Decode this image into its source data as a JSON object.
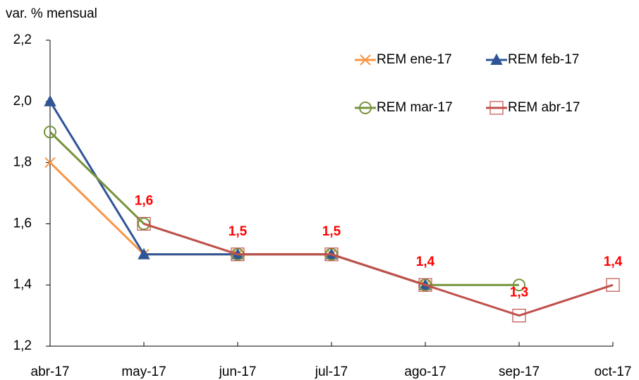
{
  "chart_data": {
    "type": "line",
    "y_label": "var. % mensual",
    "categories": [
      "abr-17",
      "may-17",
      "jun-17",
      "jul-17",
      "ago-17",
      "sep-17",
      "oct-17"
    ],
    "series": [
      {
        "name": "REM ene-17",
        "color": "#f79646",
        "marker": "x",
        "values": [
          1.8,
          1.5,
          1.5,
          1.5,
          1.4,
          null,
          null
        ]
      },
      {
        "name": "REM feb-17",
        "color": "#2f5597",
        "marker": "triangle",
        "values": [
          2.0,
          1.5,
          1.5,
          1.5,
          1.4,
          null,
          null
        ]
      },
      {
        "name": "REM mar-17",
        "color": "#77933c",
        "marker": "circle",
        "values": [
          1.9,
          1.6,
          1.5,
          1.5,
          1.4,
          1.4,
          null
        ]
      },
      {
        "name": "REM abr-17",
        "color": "#c0504d",
        "marker": "square",
        "values": [
          null,
          1.6,
          1.5,
          1.5,
          1.4,
          1.3,
          1.4
        ],
        "value_labels": [
          null,
          "1,6",
          "1,5",
          "1,5",
          "1,4",
          "1,3",
          "1,4"
        ]
      }
    ],
    "ylim": [
      1.2,
      2.2
    ],
    "yticks": [
      {
        "value": 1.2,
        "label": "1,2"
      },
      {
        "value": 1.4,
        "label": "1,4"
      },
      {
        "value": 1.6,
        "label": "1,6"
      },
      {
        "value": 1.8,
        "label": "1,8"
      },
      {
        "value": 2.0,
        "label": "2,0"
      },
      {
        "value": 2.2,
        "label": "2,2"
      }
    ],
    "grid": false
  }
}
